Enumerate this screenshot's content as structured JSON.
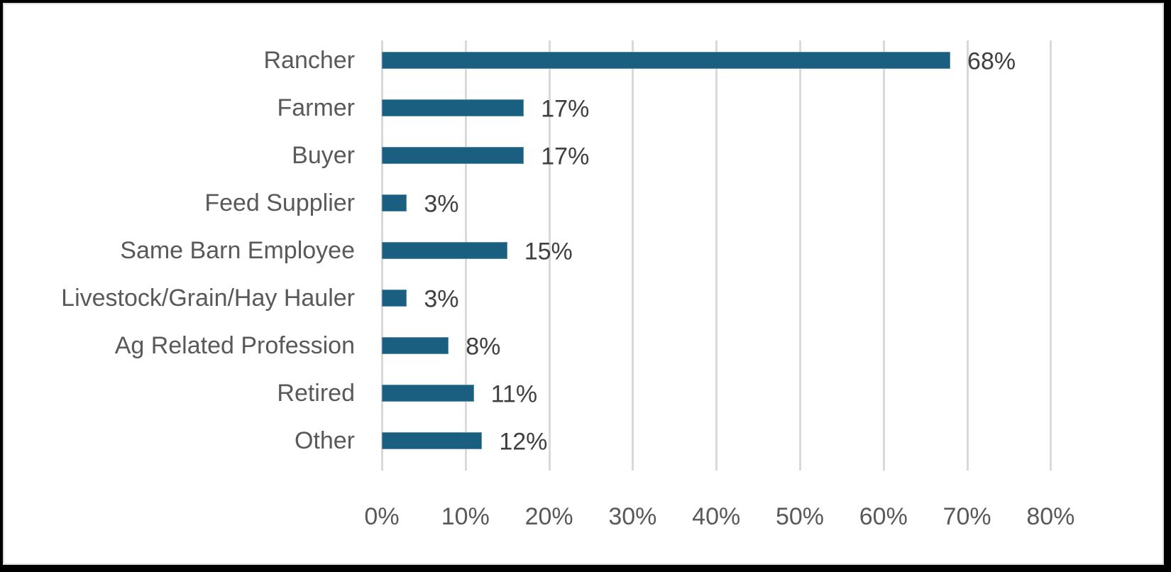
{
  "chart_data": {
    "type": "bar",
    "orientation": "horizontal",
    "title": "",
    "xlabel": "",
    "ylabel": "",
    "categories": [
      "Rancher",
      "Farmer",
      "Buyer",
      "Feed Supplier",
      "Same Barn Employee",
      "Livestock/Grain/Hay Hauler",
      "Ag Related Profession",
      "Retired",
      "Other"
    ],
    "values": [
      68,
      17,
      17,
      3,
      15,
      3,
      8,
      11,
      12
    ],
    "value_labels": [
      "68%",
      "17%",
      "17%",
      "3%",
      "15%",
      "3%",
      "8%",
      "11%",
      "12%"
    ],
    "xlim": [
      0,
      80
    ],
    "x_ticks": [
      "0%",
      "10%",
      "20%",
      "30%",
      "40%",
      "50%",
      "60%",
      "70%",
      "80%"
    ],
    "grid": "vertical",
    "legend": "none",
    "bar_color": "#1a5f80"
  }
}
